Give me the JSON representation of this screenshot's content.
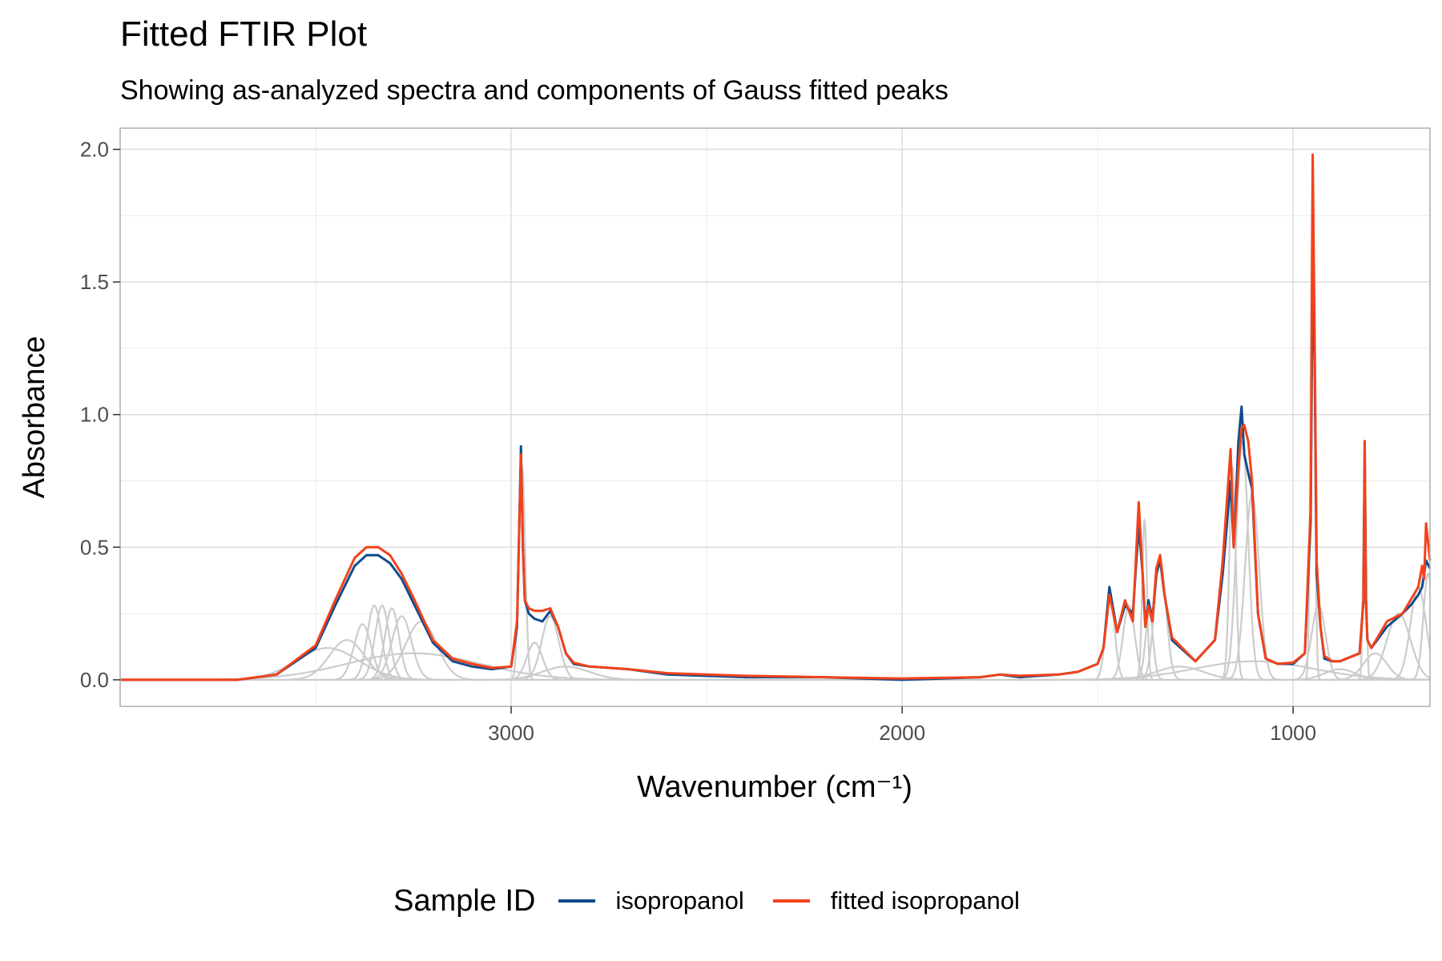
{
  "title": "Fitted FTIR Plot",
  "subtitle": "Showing as-analyzed spectra and components of Gauss fitted peaks",
  "legend": {
    "title": "Sample ID",
    "items": [
      {
        "label": "isopropanol",
        "color": "#0f4c8c"
      },
      {
        "label": "fitted isopropanol",
        "color": "#f2421b"
      }
    ]
  },
  "chart_data": {
    "type": "line",
    "xlabel": "Wavenumber (cm⁻¹)",
    "ylabel": "Absorbance",
    "x_reversed": true,
    "xlim": [
      4000,
      650
    ],
    "ylim": [
      -0.1,
      2.08
    ],
    "x_ticks": [
      3000,
      2000,
      1000
    ],
    "y_ticks": [
      0.0,
      0.5,
      1.0,
      1.5,
      2.0
    ],
    "y_tick_labels": [
      "0.0",
      "0.5",
      "1.0",
      "1.5",
      "2.0"
    ],
    "grid": true,
    "legend_position": "bottom",
    "series": [
      {
        "name": "isopropanol",
        "color": "#0f4c8c",
        "x": [
          4000,
          3700,
          3600,
          3500,
          3450,
          3400,
          3370,
          3340,
          3310,
          3280,
          3250,
          3200,
          3150,
          3100,
          3050,
          3000,
          2985,
          2975,
          2970,
          2965,
          2955,
          2940,
          2920,
          2900,
          2880,
          2860,
          2840,
          2800,
          2700,
          2600,
          2400,
          2200,
          2000,
          1800,
          1750,
          1700,
          1600,
          1550,
          1500,
          1485,
          1470,
          1450,
          1430,
          1410,
          1395,
          1385,
          1378,
          1370,
          1360,
          1350,
          1340,
          1330,
          1310,
          1250,
          1200,
          1180,
          1160,
          1152,
          1140,
          1132,
          1125,
          1115,
          1105,
          1090,
          1070,
          1040,
          1000,
          970,
          955,
          950,
          945,
          940,
          930,
          920,
          900,
          880,
          830,
          820,
          817,
          814,
          810,
          800,
          760,
          720,
          700,
          680,
          670,
          665,
          660,
          650
        ],
        "y": [
          0.0,
          0.0,
          0.02,
          0.12,
          0.28,
          0.43,
          0.47,
          0.47,
          0.44,
          0.38,
          0.29,
          0.14,
          0.07,
          0.05,
          0.04,
          0.05,
          0.2,
          0.88,
          0.5,
          0.3,
          0.25,
          0.23,
          0.22,
          0.26,
          0.2,
          0.1,
          0.06,
          0.05,
          0.04,
          0.02,
          0.01,
          0.01,
          0.0,
          0.01,
          0.02,
          0.01,
          0.02,
          0.03,
          0.06,
          0.12,
          0.35,
          0.18,
          0.28,
          0.25,
          0.58,
          0.4,
          0.2,
          0.3,
          0.23,
          0.4,
          0.45,
          0.33,
          0.15,
          0.07,
          0.15,
          0.4,
          0.75,
          0.5,
          0.9,
          1.03,
          0.85,
          0.78,
          0.72,
          0.25,
          0.08,
          0.06,
          0.06,
          0.1,
          0.6,
          1.6,
          1.2,
          0.4,
          0.2,
          0.08,
          0.07,
          0.07,
          0.1,
          0.3,
          0.88,
          0.3,
          0.15,
          0.12,
          0.2,
          0.25,
          0.28,
          0.32,
          0.35,
          0.4,
          0.45,
          0.42
        ]
      },
      {
        "name": "fitted isopropanol",
        "color": "#f2421b",
        "x": [
          4000,
          3700,
          3600,
          3500,
          3450,
          3400,
          3370,
          3340,
          3310,
          3280,
          3250,
          3200,
          3150,
          3100,
          3050,
          3000,
          2985,
          2975,
          2970,
          2965,
          2955,
          2940,
          2920,
          2900,
          2880,
          2860,
          2840,
          2800,
          2700,
          2600,
          2400,
          2200,
          2000,
          1800,
          1750,
          1700,
          1600,
          1550,
          1500,
          1485,
          1470,
          1450,
          1430,
          1410,
          1395,
          1385,
          1378,
          1370,
          1360,
          1350,
          1340,
          1330,
          1310,
          1250,
          1200,
          1180,
          1160,
          1152,
          1140,
          1132,
          1125,
          1115,
          1105,
          1090,
          1070,
          1040,
          1000,
          970,
          955,
          950,
          945,
          940,
          930,
          920,
          900,
          880,
          830,
          820,
          817,
          814,
          810,
          800,
          760,
          720,
          700,
          680,
          670,
          665,
          660,
          650
        ],
        "y": [
          0.0,
          0.0,
          0.02,
          0.13,
          0.3,
          0.46,
          0.5,
          0.5,
          0.47,
          0.4,
          0.31,
          0.15,
          0.08,
          0.06,
          0.045,
          0.05,
          0.22,
          0.85,
          0.5,
          0.3,
          0.27,
          0.26,
          0.26,
          0.27,
          0.2,
          0.1,
          0.065,
          0.05,
          0.04,
          0.025,
          0.015,
          0.01,
          0.005,
          0.01,
          0.02,
          0.015,
          0.02,
          0.03,
          0.06,
          0.12,
          0.32,
          0.18,
          0.3,
          0.22,
          0.67,
          0.4,
          0.2,
          0.28,
          0.22,
          0.42,
          0.47,
          0.33,
          0.16,
          0.07,
          0.15,
          0.45,
          0.87,
          0.5,
          0.8,
          0.95,
          0.96,
          0.9,
          0.75,
          0.25,
          0.08,
          0.06,
          0.065,
          0.1,
          0.65,
          1.98,
          1.3,
          0.45,
          0.2,
          0.09,
          0.07,
          0.07,
          0.1,
          0.3,
          0.9,
          0.3,
          0.15,
          0.12,
          0.22,
          0.25,
          0.3,
          0.35,
          0.43,
          0.38,
          0.59,
          0.45
        ]
      }
    ],
    "components": [
      {
        "center": 3470,
        "height": 0.12,
        "width": 80
      },
      {
        "center": 3420,
        "height": 0.15,
        "width": 45
      },
      {
        "center": 3380,
        "height": 0.21,
        "width": 22
      },
      {
        "center": 3350,
        "height": 0.28,
        "width": 18
      },
      {
        "center": 3330,
        "height": 0.28,
        "width": 18
      },
      {
        "center": 3305,
        "height": 0.27,
        "width": 18
      },
      {
        "center": 3280,
        "height": 0.24,
        "width": 25
      },
      {
        "center": 3230,
        "height": 0.22,
        "width": 40
      },
      {
        "center": 3250,
        "height": 0.1,
        "width": 170
      },
      {
        "center": 2972,
        "height": 0.8,
        "width": 8
      },
      {
        "center": 2940,
        "height": 0.14,
        "width": 20
      },
      {
        "center": 2900,
        "height": 0.24,
        "width": 22
      },
      {
        "center": 2860,
        "height": 0.05,
        "width": 60
      },
      {
        "center": 1468,
        "height": 0.3,
        "width": 12
      },
      {
        "center": 1420,
        "height": 0.28,
        "width": 15
      },
      {
        "center": 1380,
        "height": 0.6,
        "width": 6
      },
      {
        "center": 1368,
        "height": 0.25,
        "width": 10
      },
      {
        "center": 1340,
        "height": 0.45,
        "width": 15
      },
      {
        "center": 1290,
        "height": 0.05,
        "width": 60
      },
      {
        "center": 1155,
        "height": 0.8,
        "width": 8
      },
      {
        "center": 1130,
        "height": 0.9,
        "width": 15
      },
      {
        "center": 1105,
        "height": 0.7,
        "width": 18
      },
      {
        "center": 1100,
        "height": 0.07,
        "width": 150
      },
      {
        "center": 950,
        "height": 1.9,
        "width": 5
      },
      {
        "center": 935,
        "height": 0.28,
        "width": 18
      },
      {
        "center": 880,
        "height": 0.04,
        "width": 40
      },
      {
        "center": 817,
        "height": 0.82,
        "width": 4
      },
      {
        "center": 790,
        "height": 0.1,
        "width": 30
      },
      {
        "center": 730,
        "height": 0.25,
        "width": 30
      },
      {
        "center": 680,
        "height": 0.35,
        "width": 20
      },
      {
        "center": 655,
        "height": 0.4,
        "width": 12
      }
    ]
  }
}
